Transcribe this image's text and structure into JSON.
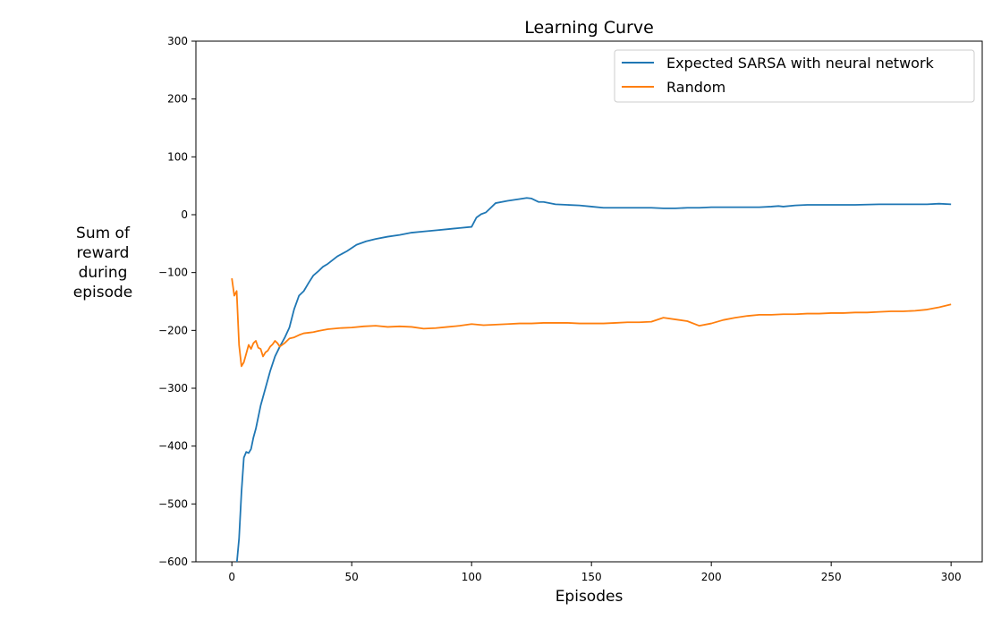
{
  "chart_data": {
    "type": "line",
    "title": "Learning Curve",
    "xlabel": "Episodes",
    "ylabel": "Sum of\nreward\nduring\nepisode",
    "xlim": [
      -15,
      313
    ],
    "ylim": [
      -600,
      300
    ],
    "xticks": [
      0,
      50,
      100,
      150,
      200,
      250,
      300
    ],
    "yticks": [
      -600,
      -500,
      -400,
      -300,
      -200,
      -100,
      0,
      100,
      200,
      300
    ],
    "ytick_labels": [
      "−600",
      "−500",
      "−400",
      "−300",
      "−200",
      "−100",
      "0",
      "100",
      "200",
      "300"
    ],
    "grid": false,
    "legend_position": "upper right",
    "series": [
      {
        "name": "Expected SARSA with neural network",
        "color": "#1f77b4",
        "x": [
          2,
          3,
          4,
          5,
          6,
          7,
          8,
          9,
          10,
          12,
          14,
          16,
          18,
          20,
          22,
          24,
          26,
          28,
          30,
          32,
          34,
          36,
          38,
          40,
          44,
          48,
          52,
          56,
          60,
          65,
          70,
          75,
          80,
          85,
          90,
          95,
          100,
          102,
          104,
          106,
          108,
          110,
          115,
          120,
          123,
          125,
          128,
          130,
          135,
          140,
          145,
          150,
          155,
          160,
          165,
          170,
          175,
          180,
          185,
          190,
          195,
          200,
          210,
          220,
          225,
          228,
          230,
          235,
          240,
          250,
          260,
          270,
          280,
          290,
          295,
          300
        ],
        "y": [
          -605,
          -560,
          -480,
          -420,
          -410,
          -412,
          -405,
          -385,
          -370,
          -330,
          -300,
          -270,
          -245,
          -228,
          -213,
          -195,
          -163,
          -140,
          -132,
          -118,
          -105,
          -98,
          -90,
          -85,
          -72,
          -63,
          -52,
          -46,
          -42,
          -38,
          -35,
          -31,
          -29,
          -27,
          -25,
          -23,
          -21,
          -5,
          1,
          4,
          12,
          20,
          24,
          27,
          29,
          28,
          22,
          22,
          18,
          17,
          16,
          14,
          12,
          12,
          12,
          12,
          12,
          11,
          11,
          12,
          12,
          13,
          13,
          13,
          14,
          15,
          14,
          16,
          17,
          17,
          17,
          18,
          18,
          18,
          19,
          18
        ]
      },
      {
        "name": "Random",
        "color": "#ff7f0e",
        "x": [
          0,
          1,
          2,
          3,
          4,
          5,
          6,
          7,
          8,
          9,
          10,
          11,
          12,
          13,
          14,
          15,
          16,
          17,
          18,
          19,
          20,
          22,
          24,
          26,
          28,
          30,
          32,
          34,
          36,
          40,
          45,
          50,
          55,
          60,
          65,
          70,
          75,
          80,
          85,
          90,
          95,
          100,
          105,
          110,
          115,
          120,
          125,
          130,
          135,
          140,
          145,
          150,
          155,
          160,
          165,
          170,
          175,
          180,
          185,
          190,
          195,
          200,
          205,
          210,
          215,
          220,
          225,
          230,
          235,
          240,
          245,
          250,
          255,
          260,
          265,
          270,
          275,
          280,
          285,
          290,
          295,
          300
        ],
        "y": [
          -110,
          -140,
          -132,
          -225,
          -262,
          -255,
          -240,
          -225,
          -232,
          -222,
          -218,
          -230,
          -232,
          -245,
          -238,
          -235,
          -228,
          -224,
          -218,
          -222,
          -228,
          -222,
          -214,
          -212,
          -208,
          -205,
          -204,
          -203,
          -201,
          -198,
          -196,
          -195,
          -193,
          -192,
          -194,
          -193,
          -194,
          -197,
          -196,
          -194,
          -192,
          -189,
          -191,
          -190,
          -189,
          -188,
          -188,
          -187,
          -187,
          -187,
          -188,
          -188,
          -188,
          -187,
          -186,
          -186,
          -185,
          -178,
          -181,
          -184,
          -192,
          -188,
          -182,
          -178,
          -175,
          -173,
          -173,
          -172,
          -172,
          -171,
          -171,
          -170,
          -170,
          -169,
          -169,
          -168,
          -167,
          -167,
          -166,
          -164,
          -160,
          -155
        ]
      }
    ]
  }
}
